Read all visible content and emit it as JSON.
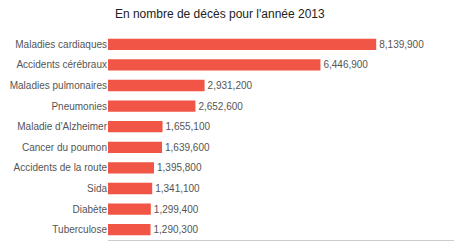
{
  "chart_data": {
    "type": "bar",
    "orientation": "horizontal",
    "title": "En nombre de décès pour l'année 2013",
    "categories": [
      "Tuberculose",
      "Diabète",
      "Sida",
      "Accidents de la route",
      "Cancer du poumon",
      "Maladie d'Alzheimer",
      "Pneumonies",
      "Maladies pulmonaires",
      "Accidents cérébraux",
      "Maladies cardiaques"
    ],
    "values": [
      1290300,
      1299400,
      1341100,
      1395800,
      1639600,
      1655100,
      2652600,
      2931200,
      6446900,
      8139900
    ],
    "value_labels": [
      "1,290,300",
      "1,299,400",
      "1,341,100",
      "1,395,800",
      "1,639,600",
      "1,655,100",
      "2,652,600",
      "2,931,200",
      "6,446,900",
      "8,139,900"
    ],
    "data_labels": true,
    "color": "#f05545",
    "xlim": [
      0,
      10500000
    ],
    "grid": false,
    "tick_labels": "y"
  }
}
